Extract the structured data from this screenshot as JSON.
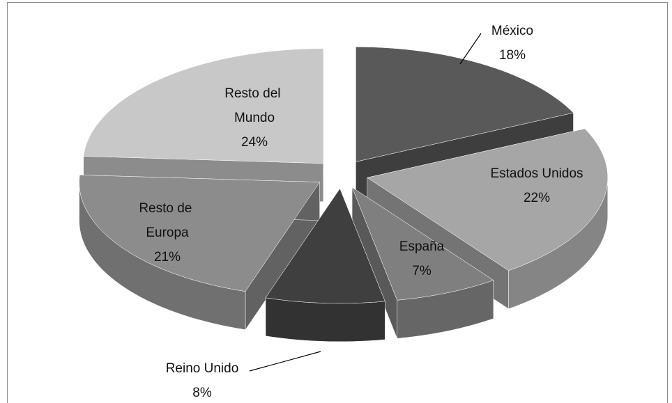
{
  "chart_data": {
    "type": "pie",
    "categories": [
      "México",
      "Estados Unidos",
      "España",
      "Reino Unido",
      "Resto de Europa",
      "Resto del Mundo"
    ],
    "values": [
      18,
      22,
      7,
      8,
      21,
      24
    ],
    "value_labels": [
      "18%",
      "22%",
      "7%",
      "8%",
      "21%",
      "24%"
    ],
    "colors": [
      "#595959",
      "#a6a6a6",
      "#7f7f7f",
      "#3f3f3f",
      "#8c8c8c",
      "#c8c8c8"
    ]
  }
}
